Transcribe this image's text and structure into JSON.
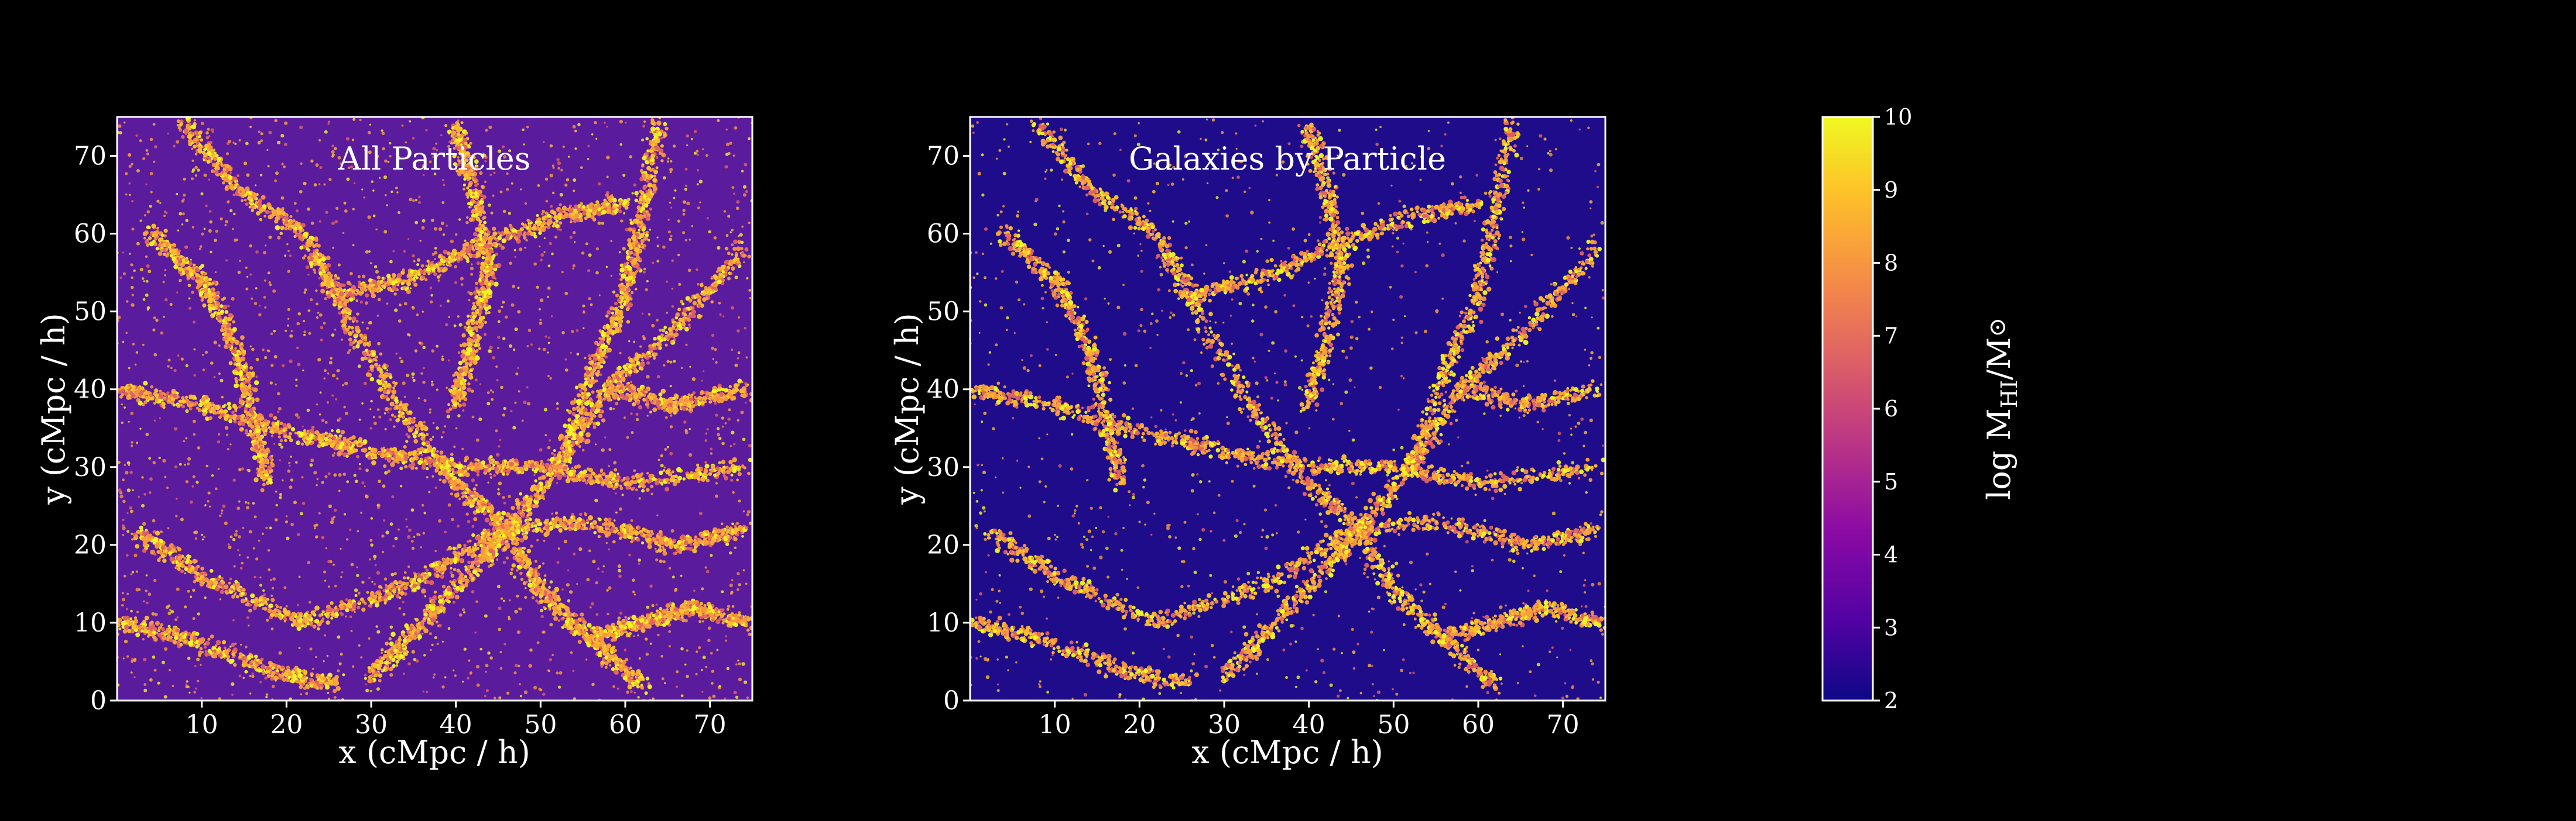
{
  "chart_data": [
    {
      "type": "heatmap",
      "title": "All Particles",
      "xlabel": "x (cMpc / h)",
      "ylabel": "y (cMpc / h)",
      "xlim": [
        0,
        75
      ],
      "ylim": [
        0,
        75
      ],
      "xticks": [
        10,
        20,
        30,
        40,
        50,
        60,
        70
      ],
      "yticks": [
        0,
        10,
        20,
        30,
        40,
        50,
        60,
        70
      ],
      "z_range": [
        2,
        10
      ],
      "background_color": "#5a1b9c",
      "grid": false
    },
    {
      "type": "heatmap",
      "title": "Galaxies by Particle",
      "xlabel": "x (cMpc / h)",
      "ylabel": "y (cMpc / h)",
      "xlim": [
        0,
        75
      ],
      "ylim": [
        0,
        75
      ],
      "xticks": [
        10,
        20,
        30,
        40,
        50,
        60,
        70
      ],
      "yticks": [
        0,
        10,
        20,
        30,
        40,
        50,
        60,
        70
      ],
      "z_range": [
        2,
        10
      ],
      "background_color": "#1f0c8a",
      "grid": false
    }
  ],
  "colorbar": {
    "label_main": "log M",
    "label_sub": "HI",
    "label_tail": "/M",
    "label_sun": "⊙",
    "ticks": [
      2,
      3,
      4,
      5,
      6,
      7,
      8,
      9,
      10
    ],
    "range": [
      2,
      10
    ],
    "colormap": "plasma",
    "stops": [
      "#0d0887",
      "#5302a3",
      "#8b0aa5",
      "#b83289",
      "#db5c68",
      "#f48849",
      "#febd2a",
      "#f0f921"
    ]
  },
  "filaments": [
    [
      [
        8,
        74
      ],
      [
        14,
        66
      ],
      [
        22,
        60
      ],
      [
        26,
        52
      ],
      [
        33,
        38
      ],
      [
        40,
        28
      ],
      [
        46,
        22
      ]
    ],
    [
      [
        2,
        22
      ],
      [
        10,
        16
      ],
      [
        22,
        10
      ],
      [
        35,
        15
      ],
      [
        45,
        22
      ],
      [
        55,
        23
      ],
      [
        66,
        20
      ],
      [
        74,
        22
      ]
    ],
    [
      [
        46,
        22
      ],
      [
        52,
        30
      ],
      [
        58,
        40
      ],
      [
        66,
        48
      ],
      [
        74,
        58
      ]
    ],
    [
      [
        30,
        3
      ],
      [
        36,
        10
      ],
      [
        43,
        18
      ],
      [
        46,
        22
      ],
      [
        50,
        14
      ],
      [
        56,
        8
      ],
      [
        62,
        2
      ]
    ],
    [
      [
        0,
        40
      ],
      [
        10,
        38
      ],
      [
        22,
        34
      ],
      [
        30,
        32
      ],
      [
        40,
        30
      ],
      [
        50,
        30
      ],
      [
        60,
        28
      ],
      [
        74,
        30
      ]
    ],
    [
      [
        52,
        30
      ],
      [
        56,
        42
      ],
      [
        60,
        52
      ],
      [
        62,
        62
      ],
      [
        64,
        74
      ]
    ],
    [
      [
        0,
        10
      ],
      [
        8,
        8
      ],
      [
        18,
        4
      ],
      [
        26,
        2
      ]
    ],
    [
      [
        58,
        40
      ],
      [
        66,
        38
      ],
      [
        74,
        40
      ]
    ],
    [
      [
        4,
        60
      ],
      [
        10,
        54
      ],
      [
        14,
        46
      ],
      [
        16,
        36
      ],
      [
        18,
        28
      ]
    ],
    [
      [
        40,
        74
      ],
      [
        42,
        66
      ],
      [
        44,
        56
      ],
      [
        42,
        46
      ],
      [
        40,
        38
      ]
    ],
    [
      [
        26,
        52
      ],
      [
        34,
        54
      ],
      [
        42,
        58
      ],
      [
        52,
        62
      ],
      [
        60,
        64
      ]
    ],
    [
      [
        56,
        8
      ],
      [
        62,
        10
      ],
      [
        68,
        12
      ],
      [
        74,
        10
      ]
    ]
  ]
}
